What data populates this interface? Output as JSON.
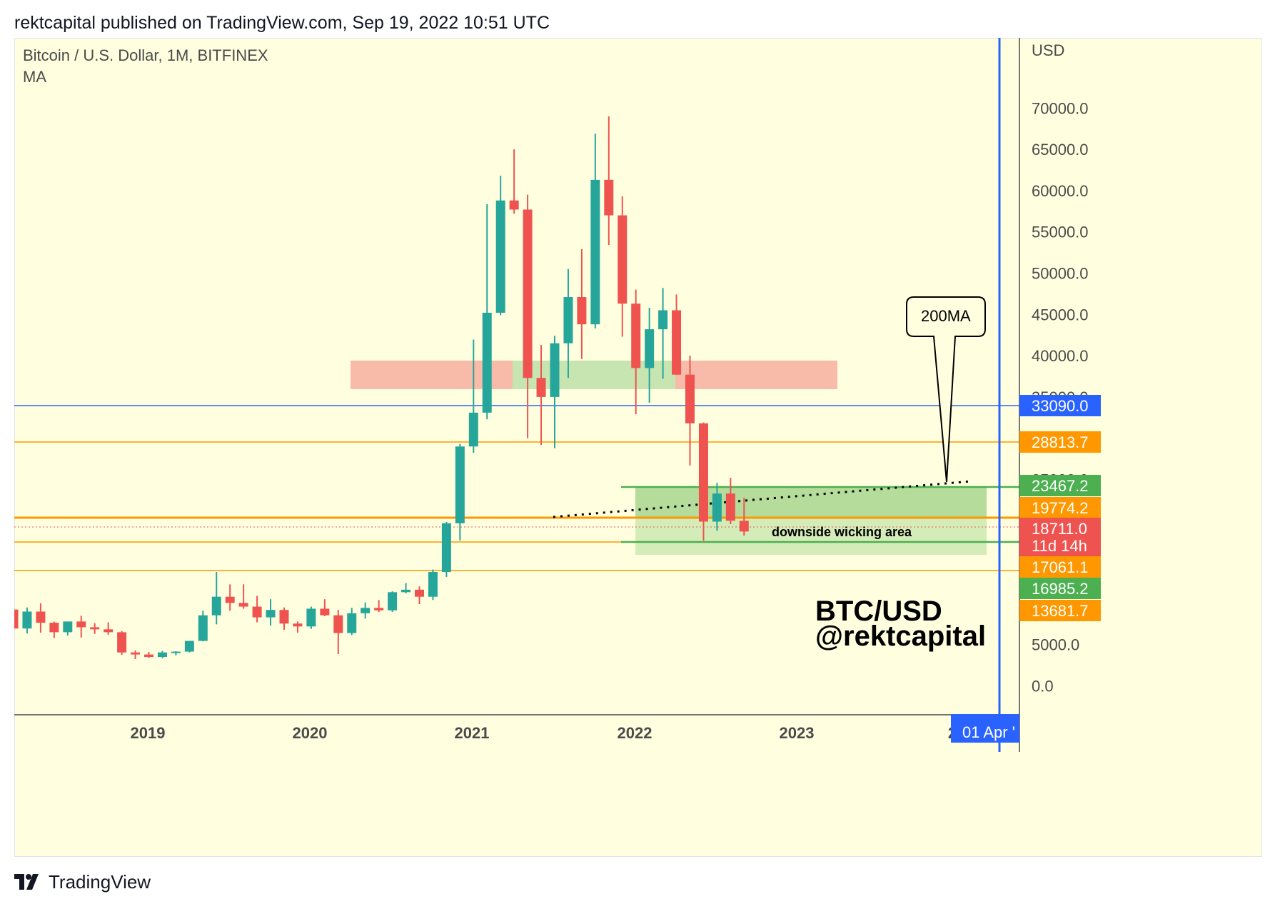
{
  "header": {
    "published_line": "rektcapital published on TradingView.com, Sep 19, 2022 10:51 UTC"
  },
  "chart": {
    "symbol_line": "Bitcoin / U.S. Dollar, 1M, BITFINEX",
    "indicator_line": "MA",
    "currency_label": "USD",
    "callout_label": "200MA",
    "zone_label": "downside wicking area",
    "watermark_line1": "BTC/USD",
    "watermark_line2": "@rektcapital",
    "countdown": "11d 14h",
    "cursor_date_tag": "01 Apr '"
  },
  "footer": {
    "brand": "TradingView"
  },
  "colors": {
    "background": "#ffffe0",
    "bull": "#26a69a",
    "bear": "#ef5350",
    "blue": "#2962ff",
    "orange": "#ff9800",
    "green_tag": "#4caf50",
    "red_tag": "#ef5350"
  },
  "chart_data": {
    "type": "candlestick",
    "price_ticks": [
      0,
      5000,
      35000,
      40000,
      45000,
      50000,
      55000,
      60000,
      65000,
      70000
    ],
    "price_tick_labels": [
      "0.0",
      "5000.0",
      "35000.0",
      "40000.0",
      "45000.0",
      "50000.0",
      "55000.0",
      "60000.0",
      "65000.0",
      "70000.0"
    ],
    "hidden_tick_label_fragments": [
      "25000.0",
      "3",
      "2"
    ],
    "year_labels": [
      "2019",
      "2020",
      "2021",
      "2022",
      "2023",
      "2"
    ],
    "y_range": [
      -3500,
      78500
    ],
    "price_tags": [
      {
        "value": 33090.0,
        "label": "33090.0",
        "color": "#2962ff"
      },
      {
        "value": 28813.7,
        "label": "28813.7",
        "color": "#ff9800"
      },
      {
        "value": 23467.2,
        "label": "23467.2",
        "color": "#4caf50"
      },
      {
        "value": 19774.2,
        "label": "19774.2",
        "color": "#ff9800"
      },
      {
        "value": 18711.0,
        "label": "18711.0",
        "color": "#ef5350"
      },
      {
        "value": 17061.1,
        "label": "17061.1",
        "color": "#ff9800"
      },
      {
        "value": 16985.2,
        "label": "16985.2",
        "color": "#4caf50"
      },
      {
        "value": 13681.7,
        "label": "13681.7",
        "color": "#ff9800"
      }
    ],
    "candles": [
      {
        "o": 9250,
        "h": 9950,
        "l": 6500,
        "c": 6950
      },
      {
        "o": 6950,
        "h": 9500,
        "l": 6350,
        "c": 9000
      },
      {
        "o": 9000,
        "h": 10000,
        "l": 6450,
        "c": 7650
      },
      {
        "o": 7650,
        "h": 7780,
        "l": 5800,
        "c": 6500
      },
      {
        "o": 6500,
        "h": 7600,
        "l": 6100,
        "c": 7800
      },
      {
        "o": 7800,
        "h": 8500,
        "l": 5850,
        "c": 7100
      },
      {
        "o": 7100,
        "h": 7600,
        "l": 6300,
        "c": 6850
      },
      {
        "o": 6850,
        "h": 7700,
        "l": 6200,
        "c": 6500
      },
      {
        "o": 6500,
        "h": 6650,
        "l": 3750,
        "c": 4050
      },
      {
        "o": 4050,
        "h": 4300,
        "l": 3250,
        "c": 3800
      },
      {
        "o": 3800,
        "h": 4100,
        "l": 3400,
        "c": 3500
      },
      {
        "o": 3500,
        "h": 4250,
        "l": 3350,
        "c": 4050
      },
      {
        "o": 4050,
        "h": 4200,
        "l": 3700,
        "c": 4150
      },
      {
        "o": 4150,
        "h": 5400,
        "l": 4050,
        "c": 5450
      },
      {
        "o": 5450,
        "h": 9100,
        "l": 5400,
        "c": 8550
      },
      {
        "o": 8550,
        "h": 13800,
        "l": 7450,
        "c": 10800
      },
      {
        "o": 10800,
        "h": 12300,
        "l": 9100,
        "c": 10050
      },
      {
        "o": 10050,
        "h": 12300,
        "l": 9350,
        "c": 9600
      },
      {
        "o": 9600,
        "h": 10900,
        "l": 7700,
        "c": 8300
      },
      {
        "o": 8300,
        "h": 10500,
        "l": 7300,
        "c": 9200
      },
      {
        "o": 9200,
        "h": 9500,
        "l": 6800,
        "c": 7550
      },
      {
        "o": 7550,
        "h": 7800,
        "l": 6450,
        "c": 7200
      },
      {
        "o": 7200,
        "h": 9600,
        "l": 6900,
        "c": 9350
      },
      {
        "o": 9350,
        "h": 10500,
        "l": 8450,
        "c": 8550
      },
      {
        "o": 8550,
        "h": 9200,
        "l": 3850,
        "c": 6400
      },
      {
        "o": 6400,
        "h": 9450,
        "l": 6150,
        "c": 8800
      },
      {
        "o": 8800,
        "h": 10100,
        "l": 8150,
        "c": 9450
      },
      {
        "o": 9450,
        "h": 10400,
        "l": 8950,
        "c": 9150
      },
      {
        "o": 9150,
        "h": 11450,
        "l": 8950,
        "c": 11350
      },
      {
        "o": 11350,
        "h": 12450,
        "l": 11200,
        "c": 11650
      },
      {
        "o": 11650,
        "h": 12050,
        "l": 9900,
        "c": 10800
      },
      {
        "o": 10800,
        "h": 14100,
        "l": 10400,
        "c": 13800
      },
      {
        "o": 13800,
        "h": 19850,
        "l": 13200,
        "c": 19700
      },
      {
        "o": 19700,
        "h": 29300,
        "l": 17600,
        "c": 29000
      },
      {
        "o": 29000,
        "h": 41950,
        "l": 28250,
        "c": 33100
      },
      {
        "o": 33100,
        "h": 58350,
        "l": 32300,
        "c": 45200
      },
      {
        "o": 45200,
        "h": 61800,
        "l": 44900,
        "c": 58800
      },
      {
        "o": 58800,
        "h": 65000,
        "l": 57200,
        "c": 57700
      },
      {
        "o": 57700,
        "h": 59500,
        "l": 30000,
        "c": 37300
      },
      {
        "o": 37300,
        "h": 41300,
        "l": 29200,
        "c": 35000
      },
      {
        "o": 35000,
        "h": 42400,
        "l": 28800,
        "c": 41500
      },
      {
        "o": 41500,
        "h": 50500,
        "l": 37300,
        "c": 47100
      },
      {
        "o": 47100,
        "h": 52900,
        "l": 39600,
        "c": 43800
      },
      {
        "o": 43800,
        "h": 66900,
        "l": 43300,
        "c": 61300
      },
      {
        "o": 61300,
        "h": 69000,
        "l": 53400,
        "c": 57000
      },
      {
        "o": 57000,
        "h": 59300,
        "l": 42300,
        "c": 46300
      },
      {
        "o": 46300,
        "h": 48000,
        "l": 32900,
        "c": 38500
      },
      {
        "o": 38500,
        "h": 45800,
        "l": 34300,
        "c": 43200
      },
      {
        "o": 43200,
        "h": 48200,
        "l": 37200,
        "c": 45500
      },
      {
        "o": 45500,
        "h": 47400,
        "l": 37700,
        "c": 37700
      },
      {
        "o": 37700,
        "h": 40000,
        "l": 26700,
        "c": 31800
      },
      {
        "o": 31800,
        "h": 31900,
        "l": 17600,
        "c": 19900
      },
      {
        "o": 19900,
        "h": 24600,
        "l": 18800,
        "c": 23300
      },
      {
        "o": 23300,
        "h": 25200,
        "l": 19600,
        "c": 20000
      },
      {
        "o": 20000,
        "h": 22800,
        "l": 18200,
        "c": 18700
      }
    ]
  }
}
